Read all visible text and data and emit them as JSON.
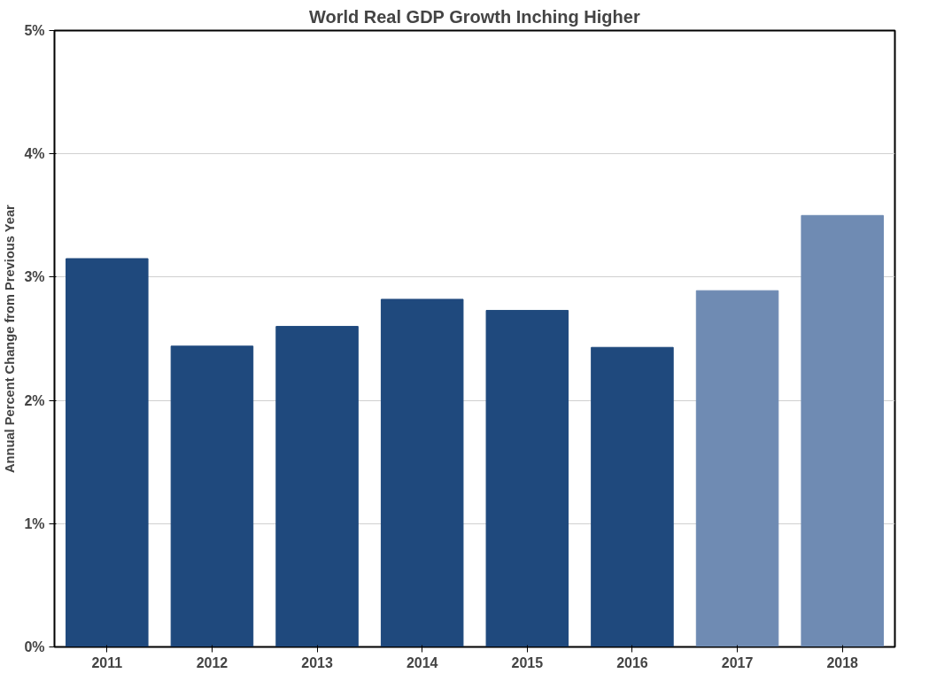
{
  "chart_data": {
    "type": "bar",
    "title": "World Real GDP Growth Inching Higher",
    "ylabel": "Annual Percent Change from Previous Year",
    "categories": [
      "2011",
      "2012",
      "2013",
      "2014",
      "2015",
      "2016",
      "2017",
      "2018"
    ],
    "values": [
      3.15,
      2.44,
      2.6,
      2.82,
      2.73,
      2.43,
      2.89,
      3.5
    ],
    "colors": [
      "#1f497d",
      "#1f497d",
      "#1f497d",
      "#1f497d",
      "#1f497d",
      "#1f497d",
      "#6f8bb3",
      "#6f8bb3"
    ],
    "ylim": [
      0,
      5
    ],
    "yticks": [
      {
        "value": 0,
        "label": "0%"
      },
      {
        "value": 1,
        "label": "1%"
      },
      {
        "value": 2,
        "label": "2%"
      },
      {
        "value": 3,
        "label": "3%"
      },
      {
        "value": 4,
        "label": "4%"
      },
      {
        "value": 5,
        "label": "5%"
      }
    ],
    "grid": "y"
  }
}
